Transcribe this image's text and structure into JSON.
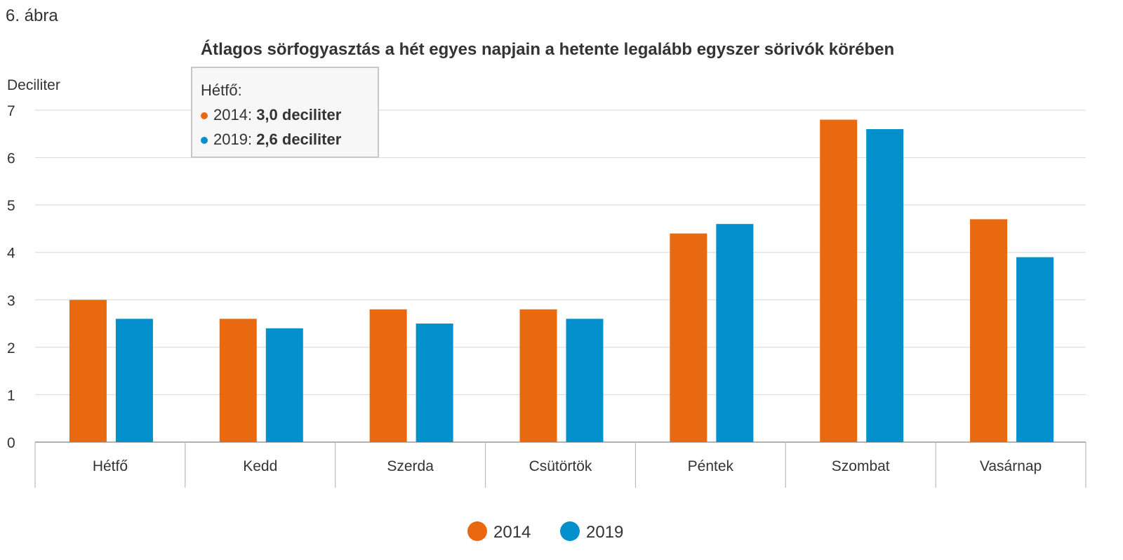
{
  "figure_label": "6. ábra",
  "chart_data": {
    "type": "bar",
    "title": "Átlagos sörfogyasztás a hét egyes napjain a hetente legalább egyszer sörivók körében",
    "ylabel": "Deciliter",
    "xlabel": "",
    "ylim": [
      0,
      7
    ],
    "yticks": [
      "0",
      "1",
      "2",
      "3",
      "4",
      "5",
      "6",
      "7"
    ],
    "grid": true,
    "legend_position": "bottom-center",
    "categories": [
      "Hétfő",
      "Kedd",
      "Szerda",
      "Csütörtök",
      "Péntek",
      "Szombat",
      "Vasárnap"
    ],
    "series": [
      {
        "name": "2014",
        "color": "#e8690f",
        "values": [
          3.0,
          2.6,
          2.8,
          2.8,
          4.4,
          6.8,
          4.7
        ]
      },
      {
        "name": "2019",
        "color": "#0390cc",
        "values": [
          2.6,
          2.4,
          2.5,
          2.6,
          4.6,
          6.6,
          3.9
        ]
      }
    ]
  },
  "tooltip": {
    "title": "Hétfő:",
    "rows": [
      {
        "label": "2014:",
        "value": "3,0 deciliter"
      },
      {
        "label": "2019:",
        "value": "2,6 deciliter"
      }
    ]
  }
}
